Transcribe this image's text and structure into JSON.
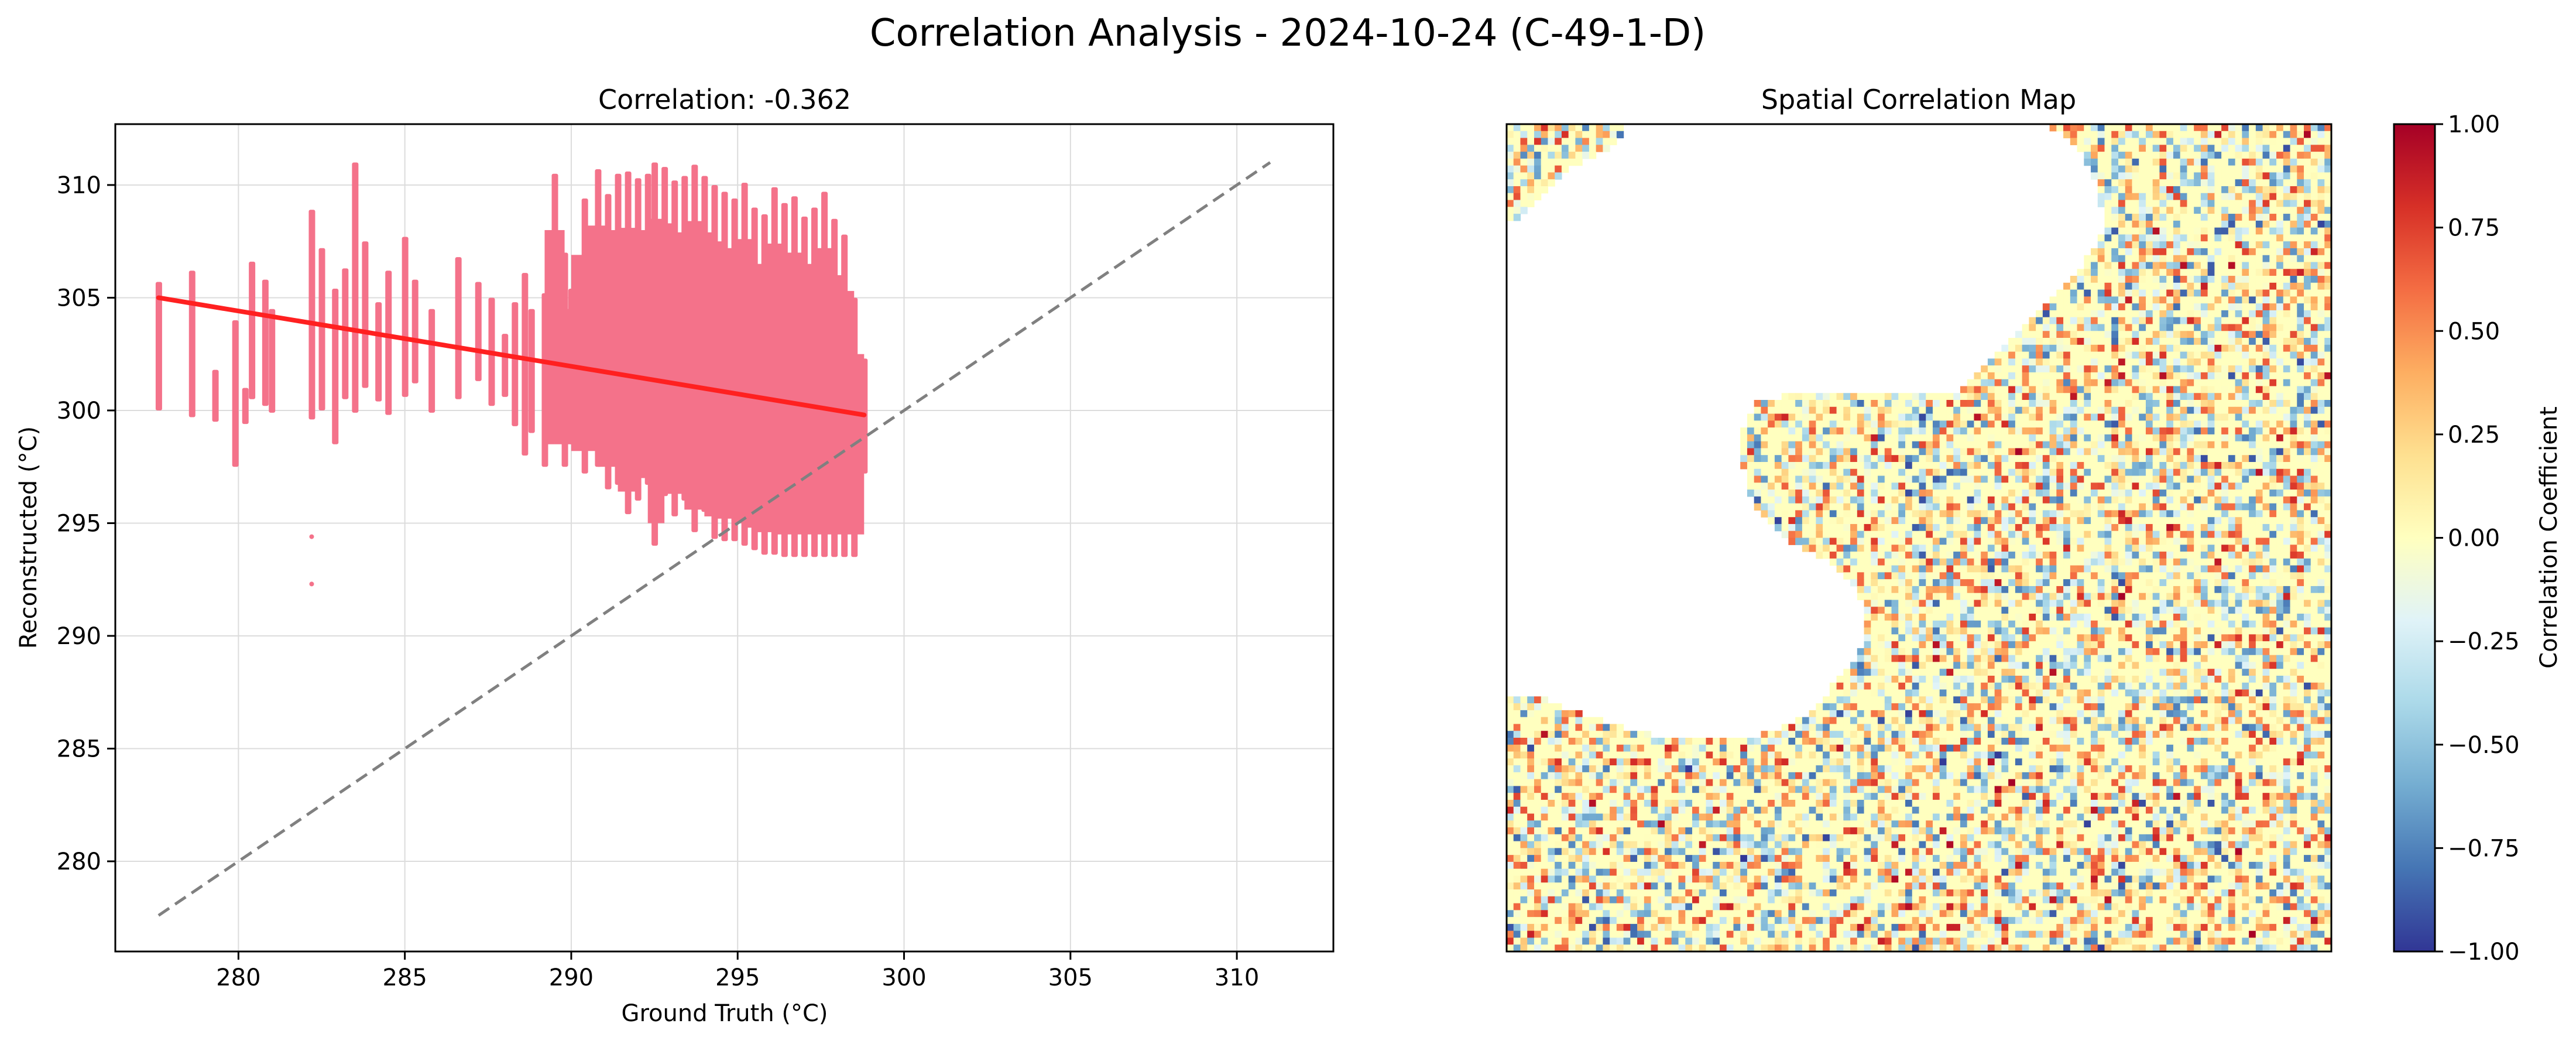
{
  "figure": {
    "title": "Correlation Analysis - 2024-10-24 (C-49-1-D)"
  },
  "chart_data": [
    {
      "type": "scatter",
      "title": "Correlation: -0.362",
      "xlabel": "Ground Truth (°C)",
      "ylabel": "Reconstructed (°C)",
      "xlim": [
        276.3,
        312.9
      ],
      "ylim": [
        276.0,
        312.7
      ],
      "xticks": [
        "280",
        "285",
        "290",
        "295",
        "300",
        "305",
        "310"
      ],
      "yticks": [
        "280",
        "285",
        "290",
        "295",
        "300",
        "305",
        "310"
      ],
      "grid": true,
      "colors": {
        "points": "#f4728a",
        "fit_line": "#ff2020",
        "identity_line": "#808080"
      },
      "fit_line": {
        "x": [
          277.6,
          298.8
        ],
        "y": [
          305.0,
          299.8
        ]
      },
      "identity_line": {
        "x": [
          277.6,
          311.0
        ],
        "y": [
          277.6,
          311.0
        ]
      },
      "point_columns": [
        [
          277.6,
          300.0,
          305.7
        ],
        [
          278.6,
          299.7,
          306.2
        ],
        [
          279.3,
          299.5,
          301.8
        ],
        [
          279.9,
          297.5,
          304.0
        ],
        [
          280.2,
          299.4,
          301.0
        ],
        [
          280.4,
          300.5,
          306.6
        ],
        [
          280.8,
          300.2,
          305.8
        ],
        [
          281.0,
          299.9,
          304.5
        ],
        [
          282.2,
          299.6,
          308.9
        ],
        [
          282.5,
          300.0,
          307.2
        ],
        [
          282.9,
          298.5,
          305.4
        ],
        [
          283.2,
          300.5,
          306.3
        ],
        [
          283.5,
          299.9,
          311.0
        ],
        [
          283.8,
          301.0,
          307.5
        ],
        [
          284.2,
          300.4,
          304.8
        ],
        [
          284.5,
          299.8,
          306.2
        ],
        [
          285.0,
          300.6,
          307.7
        ],
        [
          285.3,
          301.2,
          305.8
        ],
        [
          285.8,
          299.9,
          304.5
        ],
        [
          286.6,
          300.5,
          306.8
        ],
        [
          287.2,
          301.3,
          305.7
        ],
        [
          287.6,
          300.2,
          305.0
        ],
        [
          288.0,
          300.6,
          303.4
        ],
        [
          288.3,
          299.3,
          304.8
        ],
        [
          288.6,
          298.0,
          306.1
        ],
        [
          288.8,
          299.0,
          304.5
        ],
        [
          289.2,
          297.5,
          305.2
        ],
        [
          289.5,
          298.6,
          310.5
        ],
        [
          289.8,
          297.5,
          307.0
        ],
        [
          290.0,
          298.5,
          305.4
        ],
        [
          290.4,
          297.2,
          309.4
        ],
        [
          290.8,
          297.5,
          310.7
        ],
        [
          291.1,
          296.5,
          309.6
        ],
        [
          291.4,
          296.7,
          310.5
        ],
        [
          291.7,
          295.4,
          310.6
        ],
        [
          292.0,
          296.0,
          310.3
        ],
        [
          292.3,
          296.7,
          310.5
        ],
        [
          292.5,
          294.0,
          311.0
        ],
        [
          292.8,
          296.2,
          310.8
        ],
        [
          293.1,
          295.3,
          310.2
        ],
        [
          293.4,
          296.0,
          310.4
        ],
        [
          293.7,
          294.6,
          310.9
        ],
        [
          294.0,
          295.5,
          310.4
        ],
        [
          294.3,
          294.3,
          310.0
        ],
        [
          294.6,
          294.2,
          309.7
        ],
        [
          294.9,
          294.2,
          309.4
        ],
        [
          295.2,
          294.0,
          310.1
        ],
        [
          295.5,
          293.8,
          309.0
        ],
        [
          295.8,
          293.6,
          308.7
        ],
        [
          296.1,
          293.6,
          309.9
        ],
        [
          296.4,
          293.5,
          309.2
        ],
        [
          296.7,
          293.5,
          309.5
        ],
        [
          297.0,
          293.5,
          308.6
        ],
        [
          297.3,
          293.5,
          309.0
        ],
        [
          297.6,
          293.5,
          309.7
        ],
        [
          297.9,
          293.5,
          308.5
        ],
        [
          298.2,
          293.5,
          307.8
        ],
        [
          298.5,
          293.5,
          305.0
        ],
        [
          298.8,
          297.2,
          302.3
        ]
      ],
      "outlier_points": [
        {
          "x": 282.2,
          "y": 294.4
        },
        {
          "x": 282.2,
          "y": 292.3
        }
      ]
    },
    {
      "type": "heatmap",
      "title": "Spatial Correlation Map",
      "colorbar_label": "Correlation Coefficient",
      "colorbar_range": [
        -1.0,
        1.0
      ],
      "colorbar_ticks": [
        "1.00",
        "0.75",
        "0.50",
        "0.25",
        "0.00",
        "−0.25",
        "−0.50",
        "−0.75",
        "−1.00"
      ],
      "colormap": [
        "#313695",
        "#4575b4",
        "#74add1",
        "#abd9e9",
        "#e0f3f8",
        "#ffffbf",
        "#fee090",
        "#fdae61",
        "#f46d43",
        "#d73027",
        "#a50026"
      ],
      "grid_size": [
        120,
        120
      ],
      "fill_value": 0.0,
      "valid_mask_rows": [
        [
          0,
          16,
          79,
          119
        ],
        [
          0,
          16,
          81,
          119
        ],
        [
          0,
          15,
          82,
          119
        ],
        [
          0,
          14,
          83,
          119
        ],
        [
          0,
          12,
          84,
          119
        ],
        [
          0,
          10,
          84,
          119
        ],
        [
          0,
          8,
          85,
          119
        ],
        [
          0,
          7,
          85,
          119
        ],
        [
          0,
          6,
          86,
          119
        ],
        [
          0,
          5,
          86,
          119
        ],
        [
          0,
          4,
          86,
          119
        ],
        [
          0,
          3,
          86,
          119
        ],
        [
          0,
          2,
          87,
          119
        ],
        [
          0,
          1,
          87,
          119
        ],
        [
          -1,
          -1,
          87,
          119
        ],
        [
          -1,
          -1,
          87,
          119
        ],
        [
          -1,
          -1,
          86,
          119
        ],
        [
          -1,
          -1,
          86,
          119
        ],
        [
          -1,
          -1,
          85,
          119
        ],
        [
          -1,
          -1,
          84,
          119
        ],
        [
          -1,
          -1,
          84,
          119
        ],
        [
          -1,
          -1,
          83,
          119
        ],
        [
          -1,
          -1,
          82,
          119
        ],
        [
          -1,
          -1,
          81,
          119
        ],
        [
          -1,
          -1,
          80,
          119
        ],
        [
          -1,
          -1,
          79,
          119
        ],
        [
          -1,
          -1,
          78,
          119
        ],
        [
          -1,
          -1,
          77,
          119
        ],
        [
          -1,
          -1,
          76,
          119
        ],
        [
          -1,
          -1,
          75,
          119
        ],
        [
          -1,
          -1,
          74,
          119
        ],
        [
          -1,
          -1,
          73,
          119
        ],
        [
          -1,
          -1,
          72,
          119
        ],
        [
          -1,
          -1,
          71,
          119
        ],
        [
          -1,
          -1,
          70,
          119
        ],
        [
          -1,
          -1,
          69,
          119
        ],
        [
          -1,
          -1,
          68,
          119
        ],
        [
          -1,
          -1,
          67,
          119
        ],
        [
          -1,
          -1,
          66,
          119
        ],
        [
          -1,
          -1,
          40,
          119
        ],
        [
          -1,
          -1,
          36,
          119
        ],
        [
          -1,
          -1,
          36,
          119
        ],
        [
          -1,
          -1,
          35,
          119
        ],
        [
          -1,
          -1,
          35,
          119
        ],
        [
          -1,
          -1,
          34,
          119
        ],
        [
          -1,
          -1,
          34,
          119
        ],
        [
          -1,
          -1,
          34,
          119
        ],
        [
          -1,
          -1,
          34,
          119
        ],
        [
          -1,
          -1,
          34,
          119
        ],
        [
          -1,
          -1,
          34,
          119
        ],
        [
          -1,
          -1,
          35,
          119
        ],
        [
          -1,
          -1,
          35,
          119
        ],
        [
          -1,
          -1,
          35,
          119
        ],
        [
          -1,
          -1,
          35,
          119
        ],
        [
          -1,
          -1,
          36,
          119
        ],
        [
          -1,
          -1,
          36,
          119
        ],
        [
          -1,
          -1,
          37,
          119
        ],
        [
          -1,
          -1,
          38,
          119
        ],
        [
          -1,
          -1,
          39,
          119
        ],
        [
          -1,
          -1,
          40,
          119
        ],
        [
          -1,
          -1,
          41,
          119
        ],
        [
          -1,
          -1,
          43,
          119
        ],
        [
          -1,
          -1,
          45,
          119
        ],
        [
          -1,
          -1,
          47,
          119
        ],
        [
          -1,
          -1,
          48,
          119
        ],
        [
          -1,
          -1,
          49,
          119
        ],
        [
          -1,
          -1,
          50,
          119
        ],
        [
          -1,
          -1,
          51,
          119
        ],
        [
          -1,
          -1,
          51,
          119
        ],
        [
          -1,
          -1,
          52,
          119
        ],
        [
          -1,
          -1,
          52,
          119
        ],
        [
          -1,
          -1,
          52,
          119
        ],
        [
          -1,
          -1,
          52,
          119
        ],
        [
          -1,
          -1,
          52,
          119
        ],
        [
          -1,
          -1,
          52,
          119
        ],
        [
          -1,
          -1,
          52,
          119
        ],
        [
          -1,
          -1,
          51,
          119
        ],
        [
          -1,
          -1,
          51,
          119
        ],
        [
          -1,
          -1,
          50,
          119
        ],
        [
          -1,
          -1,
          49,
          119
        ],
        [
          -1,
          -1,
          48,
          119
        ],
        [
          -1,
          -1,
          47,
          119
        ],
        [
          -1,
          -1,
          47,
          119
        ],
        [
          0,
          5,
          46,
          119
        ],
        [
          0,
          7,
          45,
          119
        ],
        [
          0,
          10,
          44,
          119
        ],
        [
          0,
          13,
          42,
          119
        ],
        [
          0,
          16,
          40,
          119
        ],
        [
          0,
          20,
          37,
          119
        ],
        [
          0,
          119,
          -1,
          -1
        ],
        [
          0,
          119,
          -1,
          -1
        ],
        [
          0,
          119,
          -1,
          -1
        ],
        [
          0,
          119,
          -1,
          -1
        ],
        [
          0,
          119,
          -1,
          -1
        ],
        [
          0,
          119,
          -1,
          -1
        ],
        [
          0,
          119,
          -1,
          -1
        ],
        [
          0,
          119,
          -1,
          -1
        ],
        [
          0,
          119,
          -1,
          -1
        ],
        [
          0,
          119,
          -1,
          -1
        ],
        [
          0,
          119,
          -1,
          -1
        ],
        [
          0,
          119,
          -1,
          -1
        ],
        [
          0,
          119,
          -1,
          -1
        ],
        [
          0,
          119,
          -1,
          -1
        ],
        [
          0,
          119,
          -1,
          -1
        ],
        [
          0,
          119,
          -1,
          -1
        ],
        [
          0,
          119,
          -1,
          -1
        ],
        [
          0,
          119,
          -1,
          -1
        ],
        [
          0,
          119,
          -1,
          -1
        ],
        [
          0,
          119,
          -1,
          -1
        ],
        [
          0,
          119,
          -1,
          -1
        ],
        [
          0,
          119,
          -1,
          -1
        ],
        [
          0,
          119,
          -1,
          -1
        ],
        [
          0,
          119,
          -1,
          -1
        ],
        [
          0,
          119,
          -1,
          -1
        ],
        [
          0,
          119,
          -1,
          -1
        ],
        [
          0,
          119,
          -1,
          -1
        ],
        [
          0,
          119,
          -1,
          -1
        ],
        [
          0,
          119,
          -1,
          -1
        ],
        [
          0,
          119,
          -1,
          -1
        ],
        [
          0,
          119,
          -1,
          -1
        ]
      ],
      "seed": 4924
    }
  ]
}
